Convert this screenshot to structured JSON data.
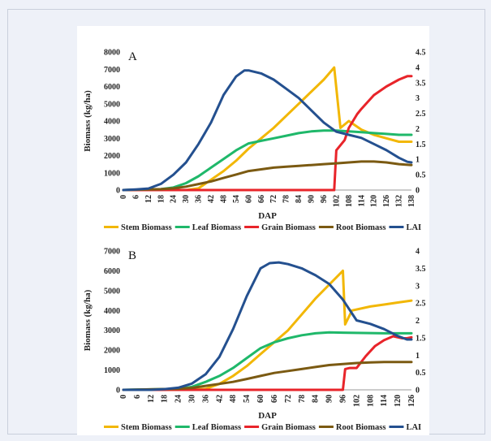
{
  "chart_data": [
    {
      "type": "line",
      "panel_label": "A",
      "xlabel": "DAP",
      "ylabel": "Biomass (kg/ha)",
      "y2label": "LAI",
      "ylim": [
        0,
        8000
      ],
      "y2lim": [
        0,
        4.5
      ],
      "yticks": [
        "0",
        "1000",
        "2000",
        "3000",
        "4000",
        "5000",
        "6000",
        "7000",
        "8000"
      ],
      "y2ticks": [
        "0",
        "0.5",
        "1",
        "1.5",
        "2",
        "2.5",
        "3",
        "3.5",
        "4",
        "4.5"
      ],
      "xticks": [
        "0",
        "6",
        "12",
        "18",
        "24",
        "30",
        "36",
        "42",
        "48",
        "54",
        "60",
        "66",
        "72",
        "78",
        "84",
        "90",
        "96",
        "102",
        "108",
        "114",
        "120",
        "126",
        "132",
        "138"
      ],
      "xlim": [
        0,
        138
      ],
      "legend_placement": "bottom",
      "series": [
        {
          "name": "Stem Biomass",
          "axis": "left",
          "color": "#f2b705",
          "x": [
            0,
            30,
            36,
            42,
            48,
            54,
            60,
            66,
            72,
            78,
            84,
            90,
            96,
            101,
            104,
            108,
            114,
            120,
            126,
            132,
            138
          ],
          "y": [
            0,
            0,
            100,
            600,
            1100,
            1700,
            2400,
            3000,
            3600,
            4300,
            5000,
            5700,
            6400,
            7100,
            3600,
            4000,
            3500,
            3200,
            3000,
            2800,
            2800
          ]
        },
        {
          "name": "Leaf Biomass",
          "axis": "left",
          "color": "#1fb86a",
          "x": [
            0,
            18,
            24,
            30,
            36,
            42,
            48,
            54,
            60,
            66,
            72,
            78,
            84,
            90,
            96,
            102,
            108,
            114,
            120,
            126,
            132,
            138
          ],
          "y": [
            0,
            50,
            150,
            400,
            800,
            1300,
            1800,
            2300,
            2700,
            2850,
            3000,
            3150,
            3300,
            3400,
            3450,
            3450,
            3400,
            3350,
            3300,
            3250,
            3200,
            3200
          ]
        },
        {
          "name": "Grain Biomass",
          "axis": "left",
          "color": "#e8242a",
          "x": [
            0,
            101,
            102,
            106,
            108,
            112,
            114,
            120,
            126,
            132,
            136,
            138
          ],
          "y": [
            0,
            0,
            2300,
            2900,
            3600,
            4400,
            4700,
            5500,
            6000,
            6400,
            6600,
            6600
          ]
        },
        {
          "name": "Root Biomass",
          "axis": "left",
          "color": "#7b5a12",
          "x": [
            0,
            18,
            24,
            30,
            36,
            42,
            48,
            54,
            60,
            66,
            72,
            78,
            84,
            90,
            96,
            102,
            108,
            114,
            120,
            126,
            132,
            138
          ],
          "y": [
            0,
            50,
            100,
            200,
            350,
            500,
            700,
            900,
            1100,
            1200,
            1300,
            1350,
            1400,
            1450,
            1500,
            1550,
            1600,
            1650,
            1650,
            1600,
            1500,
            1450
          ]
        },
        {
          "name": "LAI",
          "axis": "right",
          "color": "#24508f",
          "x": [
            0,
            6,
            12,
            18,
            24,
            30,
            36,
            42,
            48,
            54,
            58,
            60,
            66,
            72,
            78,
            84,
            90,
            96,
            102,
            108,
            114,
            120,
            126,
            132,
            136,
            138
          ],
          "y": [
            0,
            0.02,
            0.05,
            0.2,
            0.5,
            0.9,
            1.5,
            2.2,
            3.1,
            3.7,
            3.9,
            3.9,
            3.8,
            3.6,
            3.3,
            3.0,
            2.6,
            2.2,
            1.9,
            1.8,
            1.7,
            1.5,
            1.3,
            1.05,
            0.92,
            0.9
          ]
        }
      ]
    },
    {
      "type": "line",
      "panel_label": "B",
      "xlabel": "DAP",
      "ylabel": "Biomass (kg/ha)",
      "y2label": "LAI",
      "ylim": [
        0,
        7000
      ],
      "y2lim": [
        0,
        4
      ],
      "yticks": [
        "0",
        "1000",
        "2000",
        "3000",
        "4000",
        "5000",
        "6000",
        "7000"
      ],
      "y2ticks": [
        "0",
        "0.5",
        "1",
        "1.5",
        "2",
        "2.5",
        "3",
        "3.5",
        "4"
      ],
      "xticks": [
        "0",
        "6",
        "12",
        "18",
        "24",
        "30",
        "36",
        "42",
        "48",
        "54",
        "60",
        "66",
        "72",
        "78",
        "84",
        "90",
        "96",
        "102",
        "108",
        "114",
        "120",
        "126"
      ],
      "xlim": [
        0,
        126
      ],
      "legend_placement": "bottom",
      "series": [
        {
          "name": "Stem Biomass",
          "axis": "left",
          "color": "#f2b705",
          "x": [
            0,
            30,
            36,
            42,
            48,
            54,
            60,
            66,
            72,
            78,
            84,
            90,
            96,
            97,
            100,
            108,
            114,
            120,
            126
          ],
          "y": [
            0,
            0,
            50,
            300,
            700,
            1200,
            1800,
            2400,
            3000,
            3800,
            4600,
            5300,
            6000,
            3300,
            4000,
            4200,
            4300,
            4400,
            4500
          ]
        },
        {
          "name": "Leaf Biomass",
          "axis": "left",
          "color": "#1fb86a",
          "x": [
            0,
            24,
            30,
            36,
            42,
            48,
            54,
            60,
            66,
            72,
            78,
            84,
            90,
            96,
            102,
            108,
            114,
            120,
            126
          ],
          "y": [
            0,
            50,
            150,
            400,
            700,
            1100,
            1600,
            2100,
            2400,
            2600,
            2750,
            2850,
            2900,
            2880,
            2870,
            2860,
            2850,
            2850,
            2850
          ]
        },
        {
          "name": "Grain Biomass",
          "axis": "left",
          "color": "#e8242a",
          "x": [
            0,
            96,
            97,
            99,
            102,
            106,
            110,
            114,
            118,
            122,
            124,
            126
          ],
          "y": [
            0,
            0,
            1050,
            1100,
            1100,
            1700,
            2200,
            2500,
            2700,
            2600,
            2600,
            2650
          ]
        },
        {
          "name": "Root Biomass",
          "axis": "left",
          "color": "#7b5a12",
          "x": [
            0,
            24,
            30,
            36,
            42,
            48,
            54,
            60,
            66,
            72,
            78,
            84,
            90,
            96,
            102,
            108,
            114,
            120,
            126
          ],
          "y": [
            0,
            50,
            100,
            200,
            300,
            400,
            550,
            700,
            850,
            950,
            1050,
            1150,
            1250,
            1300,
            1350,
            1380,
            1400,
            1400,
            1400
          ]
        },
        {
          "name": "LAI",
          "axis": "right",
          "color": "#24508f",
          "x": [
            0,
            12,
            18,
            24,
            30,
            36,
            42,
            48,
            54,
            60,
            64,
            68,
            72,
            78,
            84,
            90,
            96,
            102,
            108,
            114,
            120,
            124,
            126
          ],
          "y": [
            0,
            0,
            0.02,
            0.06,
            0.18,
            0.45,
            0.95,
            1.75,
            2.7,
            3.5,
            3.65,
            3.67,
            3.62,
            3.5,
            3.3,
            3.05,
            2.6,
            2.0,
            1.9,
            1.75,
            1.55,
            1.45,
            1.45
          ]
        }
      ]
    }
  ]
}
